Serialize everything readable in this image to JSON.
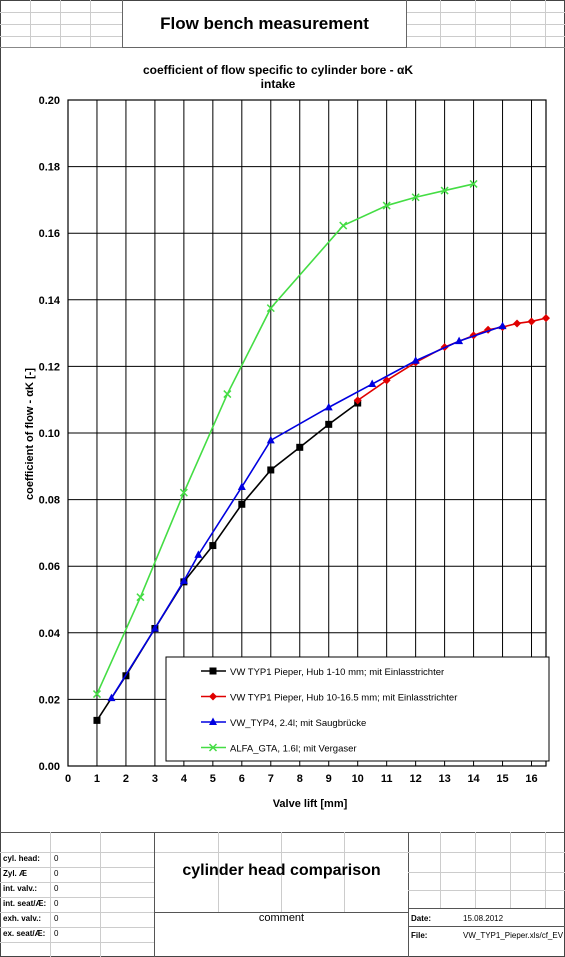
{
  "header": {
    "title": "Flow bench measurement"
  },
  "footer": {
    "title": "cylinder head comparison",
    "comment": "comment",
    "fields": [
      {
        "label": "cyl. head:",
        "value": "0"
      },
      {
        "label": "Zyl. Æ",
        "value": "0"
      },
      {
        "label": "int. valv.:",
        "value": "0"
      },
      {
        "label": "int. seat/Æ:",
        "value": "0"
      },
      {
        "label": "exh. valv.:",
        "value": "0"
      },
      {
        "label": "ex. seat/Æ:",
        "value": "0"
      }
    ],
    "date_label": "Date:",
    "date_value": "15.08.2012",
    "file_label": "File:",
    "file_value": "VW_TYP1_Pieper.xls/cf_EV"
  },
  "chart_data": {
    "type": "line",
    "title": "coefficient of flow specific to cylinder bore - αK",
    "subtitle": "intake",
    "xlabel": "Valve lift [mm]",
    "ylabel": "coefficient of flow - αK [-]",
    "xlim": [
      0,
      16.5
    ],
    "ylim": [
      0,
      0.2
    ],
    "xticks": [
      "0",
      "1",
      "2",
      "3",
      "4",
      "5",
      "6",
      "7",
      "8",
      "9",
      "10",
      "11",
      "12",
      "13",
      "14",
      "15",
      "16"
    ],
    "yticks": [
      "0.00",
      "0.02",
      "0.04",
      "0.06",
      "0.08",
      "0.10",
      "0.12",
      "0.14",
      "0.16",
      "0.18",
      "0.20"
    ],
    "grid": true,
    "legend_position": "bottom-center",
    "series": [
      {
        "name": "VW TYP1 Pieper, Hub 1-10 mm; mit Einlasstrichter",
        "color": "#000000",
        "marker": "square",
        "x": [
          1,
          2,
          3,
          4,
          5,
          6,
          7,
          8,
          9,
          10
        ],
        "y": [
          0.0137,
          0.0271,
          0.0413,
          0.0553,
          0.0662,
          0.0786,
          0.0889,
          0.0957,
          0.1026,
          0.109
        ]
      },
      {
        "name": "VW TYP1 Pieper, Hub 10-16.5 mm; mit Einlasstrichter",
        "color": "#e00000",
        "marker": "diamond",
        "x": [
          10,
          11,
          12,
          13,
          14,
          14.5,
          15,
          15.5,
          16,
          16.5
        ],
        "y": [
          0.1098,
          0.1158,
          0.1212,
          0.1258,
          0.1293,
          0.131,
          0.1318,
          0.1329,
          0.1335,
          0.1345
        ]
      },
      {
        "name": "VW_TYP4, 2.4l; mit Saugbrücke",
        "color": "#0000e0",
        "marker": "triangle",
        "x": [
          1.5,
          3,
          4,
          4.5,
          6,
          7,
          9,
          10.5,
          12,
          13.5,
          15
        ],
        "y": [
          0.0204,
          0.0413,
          0.0556,
          0.0634,
          0.0838,
          0.0978,
          0.1077,
          0.1147,
          0.1217,
          0.1276,
          0.1321
        ]
      },
      {
        "name": "ALFA_GTA, 1.6l; mit Vergaser",
        "color": "#44dd44",
        "marker": "x",
        "x": [
          1,
          2.5,
          4,
          5.5,
          7,
          9.5,
          11,
          12,
          13,
          14
        ],
        "y": [
          0.0216,
          0.0507,
          0.0821,
          0.1117,
          0.1375,
          0.1623,
          0.1683,
          0.1708,
          0.1728,
          0.1748
        ]
      }
    ]
  }
}
